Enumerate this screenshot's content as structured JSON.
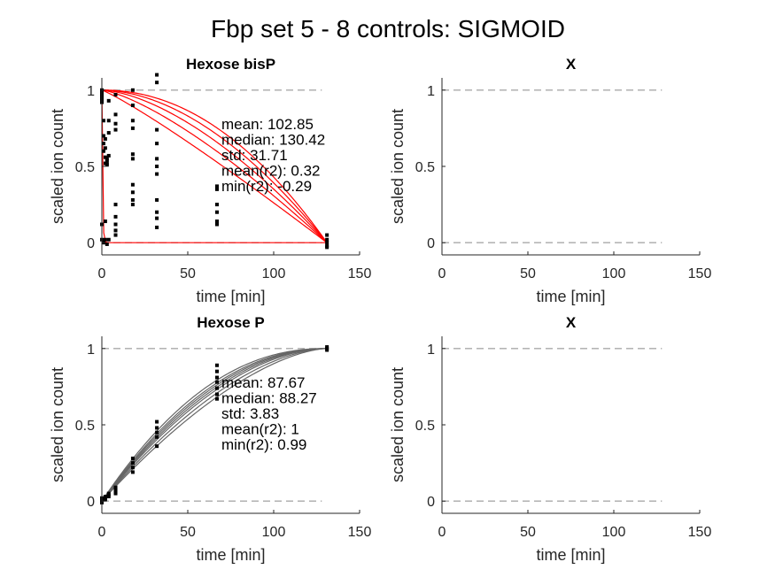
{
  "figure": {
    "title": "Fbp set 5 - 8 controls: SIGMOID"
  },
  "colors": {
    "fit_sigmoid": "#ff0000",
    "fit_normal": "#666666",
    "markers": "#000000",
    "reference_lines": "#aaaaaa",
    "axis": "#262626"
  },
  "chart_data": [
    {
      "type": "scatter",
      "title": "Hexose bisP",
      "xlabel": "time [min]",
      "ylabel": "scaled ion count",
      "xlim": [
        0,
        150
      ],
      "ylim": [
        -0.08,
        1.08
      ],
      "xticks": [
        0,
        50,
        100,
        150
      ],
      "yticks": [
        0,
        0.5,
        1
      ],
      "reference_lines": [
        0,
        1
      ],
      "stats": [
        "mean: 102.85",
        "median: 130.42",
        "std: 31.71",
        "mean(r2): 0.32",
        "min(r2): -0.29"
      ],
      "fit_color": "#ff0000",
      "fit_type": "decreasing",
      "fit_halftimes": [
        1,
        60,
        70,
        80,
        90,
        100
      ],
      "fit_end": 131,
      "points": {
        "0": [
          1.0,
          0.99,
          0.98,
          0.97,
          0.96,
          0.95,
          0.94,
          0.93,
          0.92,
          0.12,
          0.02
        ],
        "1": [
          0.8,
          0.7,
          0.65,
          0.6,
          0.01,
          0.0
        ],
        "2": [
          0.68,
          0.62,
          0.56,
          0.52,
          0.14,
          0.02
        ],
        "3": [
          0.55,
          0.54,
          0.52,
          0.51,
          -0.01
        ],
        "4": [
          0.93,
          0.8,
          0.72,
          0.57,
          0.02
        ],
        "8": [
          0.97,
          0.84,
          0.78,
          0.74,
          0.25,
          0.17,
          0.12,
          0.08,
          0.05
        ],
        "18": [
          1.0,
          0.9,
          0.8,
          0.75,
          0.58,
          0.55,
          0.38,
          0.33,
          0.28,
          0.25
        ],
        "32": [
          1.1,
          1.05,
          0.74,
          0.65,
          0.55,
          0.5,
          0.45,
          0.28,
          0.2,
          0.16,
          0.1
        ],
        "67": [
          0.37,
          0.35,
          0.25,
          0.2,
          0.14,
          0.12
        ],
        "131": [
          0.05,
          0.02,
          0.0,
          -0.02,
          -0.03
        ]
      }
    },
    {
      "type": "scatter",
      "title": "X",
      "xlabel": "time [min]",
      "ylabel": "scaled ion count",
      "xlim": [
        0,
        150
      ],
      "ylim": [
        -0.08,
        1.08
      ],
      "xticks": [
        0,
        50,
        100,
        150
      ],
      "yticks": [
        0,
        0.5,
        1
      ],
      "reference_lines": [
        0,
        1
      ],
      "stats": [],
      "points": {}
    },
    {
      "type": "scatter",
      "title": "Hexose P",
      "xlabel": "time [min]",
      "ylabel": "scaled ion count",
      "xlim": [
        0,
        150
      ],
      "ylim": [
        -0.08,
        1.08
      ],
      "xticks": [
        0,
        50,
        100,
        150
      ],
      "yticks": [
        0,
        0.5,
        1
      ],
      "reference_lines": [
        0,
        1
      ],
      "stats": [
        "mean: 87.67",
        "median: 88.27",
        "std: 3.83",
        "mean(r2): 1",
        "min(r2): 0.99"
      ],
      "fit_color": "#666666",
      "fit_type": "increasing",
      "fit_halftimes": [
        80,
        83,
        86,
        88,
        90,
        92,
        95
      ],
      "fit_end": 131,
      "points": {
        "0": [
          0.0,
          0.01,
          0.02,
          -0.01
        ],
        "2": [
          0.02,
          0.03,
          0.01
        ],
        "4": [
          0.05,
          0.04,
          0.03
        ],
        "8": [
          0.09,
          0.08,
          0.07,
          0.06,
          0.05
        ],
        "18": [
          0.28,
          0.25,
          0.22,
          0.19
        ],
        "32": [
          0.52,
          0.48,
          0.45,
          0.42,
          0.36
        ],
        "67": [
          0.89,
          0.85,
          0.81,
          0.78,
          0.74,
          0.7,
          0.67
        ],
        "131": [
          1.01,
          1.0,
          0.99
        ]
      }
    },
    {
      "type": "scatter",
      "title": "X",
      "xlabel": "time [min]",
      "ylabel": "scaled ion count",
      "xlim": [
        0,
        150
      ],
      "ylim": [
        -0.08,
        1.08
      ],
      "xticks": [
        0,
        50,
        100,
        150
      ],
      "yticks": [
        0,
        0.5,
        1
      ],
      "reference_lines": [
        0,
        1
      ],
      "stats": [],
      "points": {}
    }
  ]
}
